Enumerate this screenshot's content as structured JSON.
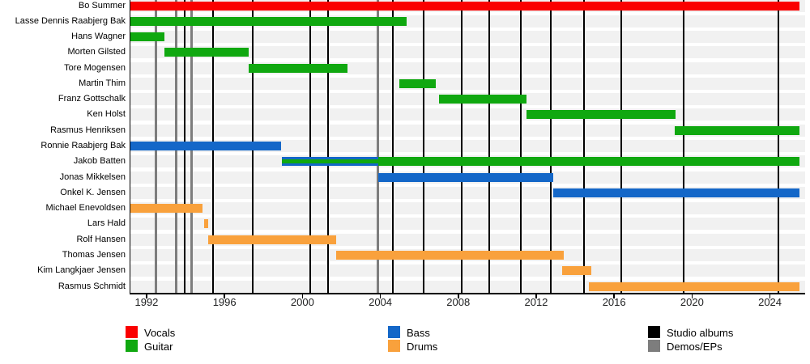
{
  "chart_data": {
    "type": "bar",
    "subtype": "gantt-band-members-timeline",
    "axis": {
      "start_year": 1991.17,
      "end_year": 2025.51,
      "ticks": [
        "1992",
        "1996",
        "2000",
        "2004",
        "2008",
        "2012",
        "2016",
        "2020",
        "2024"
      ],
      "tick_years": [
        1992,
        1996,
        2000,
        2004,
        2008,
        2012,
        2016,
        2020,
        2024
      ]
    },
    "members": [
      {
        "name": "Bo Summer",
        "segments": [
          {
            "start": 1991.17,
            "end": 2025.51,
            "color": "vocals"
          }
        ]
      },
      {
        "name": "Lasse Dennis Raabjerg Bak",
        "segments": [
          {
            "start": 1991.17,
            "end": 2005.33,
            "color": "guitar"
          }
        ]
      },
      {
        "name": "Hans Wagner",
        "segments": [
          {
            "start": 1991.17,
            "end": 1992.93,
            "color": "guitar"
          }
        ]
      },
      {
        "name": "Morten Gilsted",
        "segments": [
          {
            "start": 1992.93,
            "end": 1997.23,
            "color": "guitar"
          }
        ]
      },
      {
        "name": "Tore Mogensen",
        "segments": [
          {
            "start": 1997.23,
            "end": 2002.31,
            "color": "guitar"
          }
        ]
      },
      {
        "name": "Martin Thim",
        "segments": [
          {
            "start": 2004.96,
            "end": 2006.86,
            "color": "guitar"
          }
        ]
      },
      {
        "name": "Franz Gottschalk",
        "segments": [
          {
            "start": 2007.0,
            "end": 2011.5,
            "color": "guitar"
          }
        ]
      },
      {
        "name": "Ken Holst",
        "segments": [
          {
            "start": 2011.5,
            "end": 2019.17,
            "color": "guitar"
          }
        ]
      },
      {
        "name": "Rasmus Henriksen",
        "segments": [
          {
            "start": 2019.1,
            "end": 2025.51,
            "color": "guitar"
          }
        ]
      },
      {
        "name": "Ronnie Raabjerg Bak",
        "segments": [
          {
            "start": 1991.17,
            "end": 1998.9,
            "color": "bass"
          }
        ]
      },
      {
        "name": "Jakob Batten",
        "segments": [
          {
            "start": 1998.95,
            "end": 2003.88,
            "color": "bass"
          },
          {
            "start": 1998.95,
            "end": 2003.88,
            "color": "guitar",
            "inset": true
          },
          {
            "start": 2003.88,
            "end": 2025.51,
            "color": "guitar"
          }
        ]
      },
      {
        "name": "Jonas Mikkelsen",
        "segments": [
          {
            "start": 2003.88,
            "end": 2012.86,
            "color": "bass"
          }
        ]
      },
      {
        "name": "Onkel K. Jensen",
        "segments": [
          {
            "start": 2012.86,
            "end": 2025.51,
            "color": "bass"
          }
        ]
      },
      {
        "name": "Michael Enevoldsen",
        "segments": [
          {
            "start": 1991.17,
            "end": 1994.87,
            "color": "drums"
          }
        ]
      },
      {
        "name": "Lars Hald",
        "segments": [
          {
            "start": 1994.95,
            "end": 1995.18,
            "color": "drums"
          }
        ]
      },
      {
        "name": "Rolf Hansen",
        "segments": [
          {
            "start": 1995.18,
            "end": 2001.72,
            "color": "drums"
          }
        ]
      },
      {
        "name": "Thomas Jensen",
        "segments": [
          {
            "start": 2001.72,
            "end": 2013.41,
            "color": "drums"
          }
        ]
      },
      {
        "name": "Kim Langkjaer Jensen",
        "segments": [
          {
            "start": 2013.32,
            "end": 2014.82,
            "color": "drums"
          }
        ]
      },
      {
        "name": "Rasmus Schmidt",
        "segments": [
          {
            "start": 2014.72,
            "end": 2025.51,
            "color": "drums"
          }
        ]
      }
    ],
    "releases": [
      {
        "year": 1992.46,
        "type": "demo-ep"
      },
      {
        "year": 1993.52,
        "type": "demo-ep"
      },
      {
        "year": 1993.94,
        "type": "studio-album"
      },
      {
        "year": 1994.32,
        "type": "demo-ep"
      },
      {
        "year": 1995.4,
        "type": "studio-album"
      },
      {
        "year": 1997.43,
        "type": "studio-album"
      },
      {
        "year": 2000.4,
        "type": "studio-album"
      },
      {
        "year": 2001.33,
        "type": "studio-album"
      },
      {
        "year": 2003.88,
        "type": "demo-ep"
      },
      {
        "year": 2004.66,
        "type": "studio-album"
      },
      {
        "year": 2006.21,
        "type": "studio-album"
      },
      {
        "year": 2008.17,
        "type": "studio-album"
      },
      {
        "year": 2009.57,
        "type": "studio-album"
      },
      {
        "year": 2011.22,
        "type": "studio-album"
      },
      {
        "year": 2012.75,
        "type": "studio-album"
      },
      {
        "year": 2014.44,
        "type": "studio-album"
      },
      {
        "year": 2016.37,
        "type": "studio-album"
      },
      {
        "year": 2019.58,
        "type": "studio-album"
      },
      {
        "year": 2024.45,
        "type": "studio-album"
      }
    ],
    "legend": {
      "columns": [
        [
          {
            "label": "Vocals",
            "color_key": "vocals"
          },
          {
            "label": "Guitar",
            "color_key": "guitar"
          }
        ],
        [
          {
            "label": "Bass",
            "color_key": "bass"
          },
          {
            "label": "Drums",
            "color_key": "drums"
          }
        ],
        [
          {
            "label": "Studio albums",
            "color_key": "studio_album"
          },
          {
            "label": "Demos/EPs",
            "color_key": "demo_ep"
          }
        ]
      ]
    },
    "colors": {
      "vocals": "#fa0000",
      "guitar": "#10a810",
      "bass": "#1467c8",
      "drums": "#f9a13c",
      "studio_album": "#000000",
      "demo_ep": "#7d7d7d",
      "stripe": "#f1f1f1",
      "axis": "#000000",
      "tick_label": "#202122"
    }
  }
}
